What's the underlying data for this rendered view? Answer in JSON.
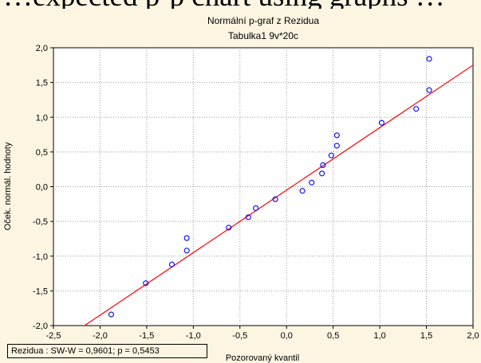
{
  "top_text": "…expected p-p chart using graphs …",
  "chart_data": {
    "type": "scatter",
    "title": "Normální p-graf z Rezidua",
    "subtitle": "Tabulka1 9v*20c",
    "xlabel": "Pozorovaný kvantil",
    "ylabel": "Oček. normál. hodnoty",
    "xlim": [
      -2.5,
      2.0
    ],
    "ylim": [
      -2.0,
      2.0
    ],
    "xticks": [
      "-2,5",
      "-2,0",
      "-1,5",
      "-1,0",
      "-0,5",
      "0,0",
      "0,5",
      "1,0",
      "1,5",
      "2,0"
    ],
    "yticks": [
      "2,0",
      "1,5",
      "1,0",
      "0,5",
      "0,0",
      "-0,5",
      "-1,0",
      "-1,5",
      "-2,0"
    ],
    "grid": true,
    "points": [
      {
        "x": -1.88,
        "y": -1.84
      },
      {
        "x": -1.51,
        "y": -1.39
      },
      {
        "x": -1.23,
        "y": -1.12
      },
      {
        "x": -1.07,
        "y": -0.92
      },
      {
        "x": -1.07,
        "y": -0.74
      },
      {
        "x": -0.62,
        "y": -0.59
      },
      {
        "x": -0.41,
        "y": -0.44
      },
      {
        "x": -0.33,
        "y": -0.31
      },
      {
        "x": -0.12,
        "y": -0.18
      },
      {
        "x": 0.17,
        "y": -0.06
      },
      {
        "x": 0.27,
        "y": 0.06
      },
      {
        "x": 0.38,
        "y": 0.19
      },
      {
        "x": 0.39,
        "y": 0.31
      },
      {
        "x": 0.48,
        "y": 0.45
      },
      {
        "x": 0.54,
        "y": 0.59
      },
      {
        "x": 0.54,
        "y": 0.74
      },
      {
        "x": 1.02,
        "y": 0.92
      },
      {
        "x": 1.39,
        "y": 1.12
      },
      {
        "x": 1.53,
        "y": 1.39
      },
      {
        "x": 1.53,
        "y": 1.84
      }
    ],
    "fit_line": {
      "x1": -2.5,
      "y1": -2.3,
      "x2": 2.0,
      "y2": 1.75
    },
    "point_color": "#0000ff",
    "line_color": "#ff0000",
    "stat_text": "Rezidua :  SW-W = 0,9601; p = 0,5453"
  }
}
